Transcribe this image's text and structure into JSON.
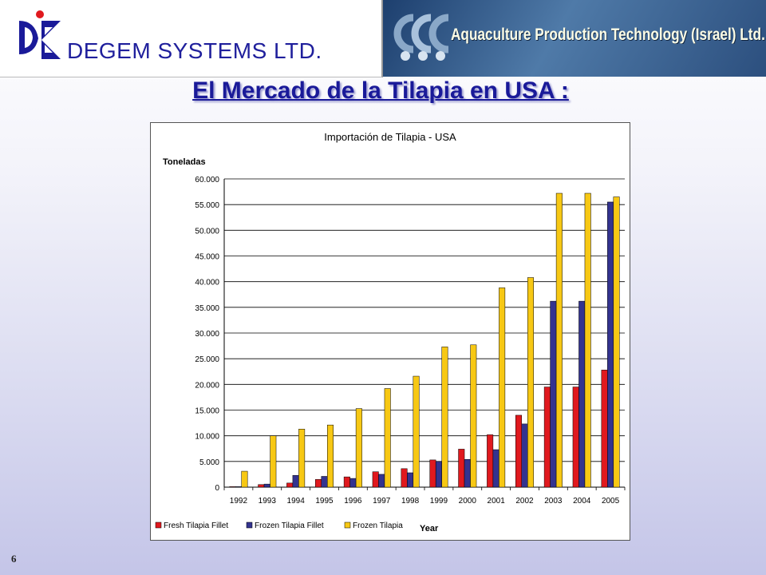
{
  "header": {
    "company_name": "DEGEM SYSTEMS LTD.",
    "logo_icon": "degem-logo",
    "banner_logo_icon": "apt-logo",
    "banner_text": "Aquaculture Production Technology (Israel) Ltd."
  },
  "slide": {
    "title": "El Mercado de la Tilapia en USA :",
    "page_number": "6"
  },
  "colors": {
    "title": "#1a1a99",
    "fresh_fillet": "#e0191e",
    "frozen_fillet": "#33338f",
    "frozen_tilapia": "#f7c814"
  },
  "chart_data": {
    "type": "bar",
    "title": "Importación de Tilapia - USA",
    "ylabel": "Toneladas",
    "xlabel": "Year",
    "ylim": [
      0,
      60000
    ],
    "ytick_labels": [
      "0",
      "5.000",
      "10.000",
      "15.000",
      "20.000",
      "25.000",
      "30.000",
      "35.000",
      "40.000",
      "45.000",
      "50.000",
      "55.000",
      "60.000"
    ],
    "grid": true,
    "legend_position": "bottom",
    "categories": [
      "1992",
      "1993",
      "1994",
      "1995",
      "1996",
      "1997",
      "1998",
      "1999",
      "2000",
      "2001",
      "2002",
      "2003",
      "2004",
      "2005"
    ],
    "series": [
      {
        "name": "Fresh Tilapia Fillet",
        "color": "#e0191e",
        "values": [
          100,
          500,
          800,
          1500,
          2000,
          3000,
          3600,
          5300,
          7400,
          10200,
          14000,
          19500,
          19500,
          22800
        ]
      },
      {
        "name": "Frozen Tilapia Fillet",
        "color": "#33338f",
        "values": [
          100,
          600,
          2300,
          2100,
          1700,
          2500,
          2800,
          5000,
          5400,
          7300,
          12300,
          36200,
          36200,
          55500
        ]
      },
      {
        "name": "Frozen Tilapia",
        "color": "#f7c814",
        "values": [
          3100,
          10000,
          11300,
          12100,
          15300,
          19200,
          21600,
          27300,
          27700,
          38800,
          40800,
          57200,
          57200,
          56500
        ]
      }
    ]
  }
}
